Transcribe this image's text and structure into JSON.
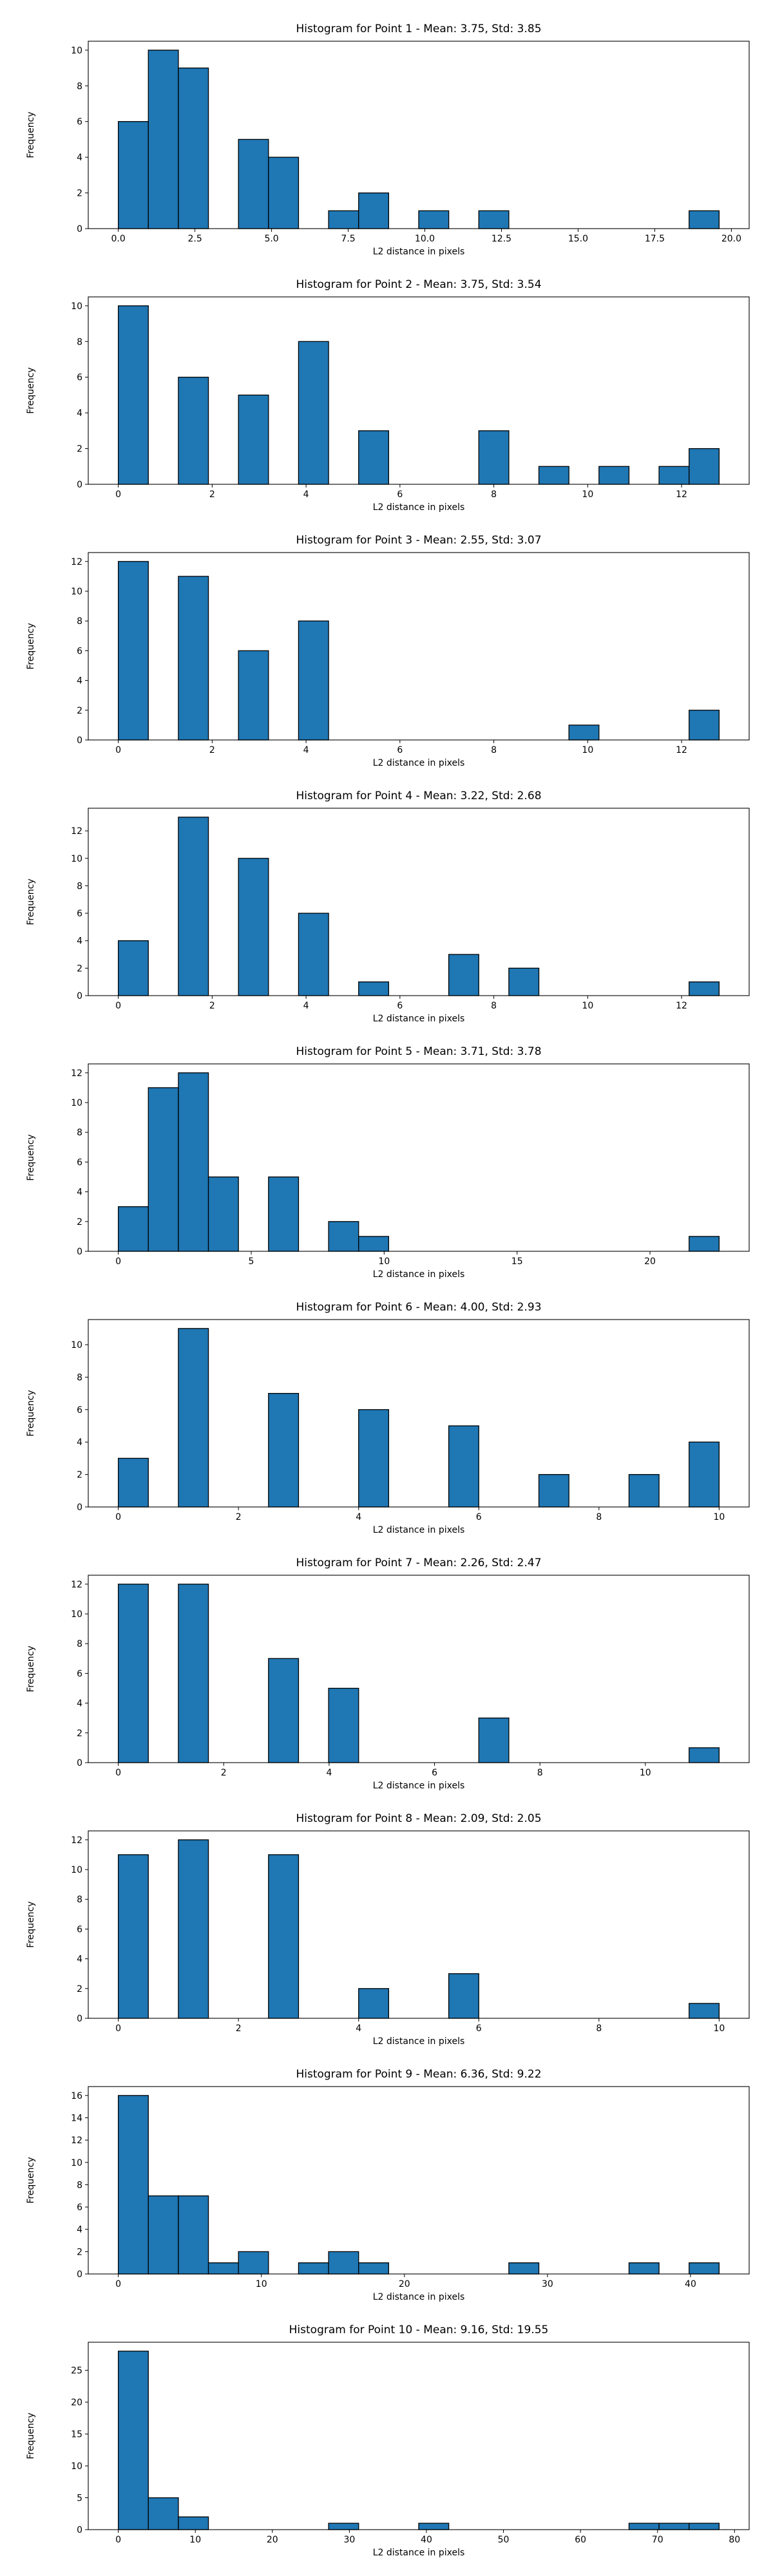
{
  "chart_data": [
    {
      "type": "bar",
      "title": "Histogram for Point 1 - Mean: 3.75, Std: 3.85",
      "xlabel": "L2 distance in pixels",
      "ylabel": "Frequency",
      "bin_start": 0.0,
      "bin_width": 0.98,
      "values": [
        6,
        10,
        9,
        0,
        5,
        4,
        0,
        1,
        2,
        0,
        1,
        0,
        1,
        0,
        0,
        0,
        0,
        0,
        0,
        1
      ],
      "xlim": [
        -0.98,
        20.58
      ],
      "ylim": [
        0,
        10.5
      ],
      "xticks": [
        0.0,
        2.5,
        5.0,
        7.5,
        10.0,
        12.5,
        15.0,
        17.5,
        20.0
      ],
      "xtick_labels": [
        "0.0",
        "2.5",
        "5.0",
        "7.5",
        "10.0",
        "12.5",
        "15.0",
        "17.5",
        "20.0"
      ],
      "yticks": [
        0,
        2,
        4,
        6,
        8,
        10
      ],
      "color": "#1f77b4",
      "edgecolor": "#000000"
    },
    {
      "type": "bar",
      "title": "Histogram for Point 2 - Mean: 3.75, Std: 3.54",
      "xlabel": "L2 distance in pixels",
      "ylabel": "Frequency",
      "bin_start": 0.0,
      "bin_width": 0.64,
      "values": [
        10,
        0,
        6,
        0,
        5,
        0,
        8,
        0,
        3,
        0,
        0,
        0,
        3,
        0,
        1,
        0,
        1,
        0,
        1,
        2
      ],
      "xlim": [
        -0.64,
        13.44
      ],
      "ylim": [
        0,
        10.5
      ],
      "xticks": [
        0,
        2,
        4,
        6,
        8,
        10,
        12
      ],
      "xtick_labels": [
        "0",
        "2",
        "4",
        "6",
        "8",
        "10",
        "12"
      ],
      "yticks": [
        0,
        2,
        4,
        6,
        8,
        10
      ],
      "color": "#1f77b4",
      "edgecolor": "#000000"
    },
    {
      "type": "bar",
      "title": "Histogram for Point 3 - Mean: 2.55, Std: 3.07",
      "xlabel": "L2 distance in pixels",
      "ylabel": "Frequency",
      "bin_start": 0.0,
      "bin_width": 0.64,
      "values": [
        12,
        0,
        11,
        0,
        6,
        0,
        8,
        0,
        0,
        0,
        0,
        0,
        0,
        0,
        0,
        1,
        0,
        0,
        0,
        2
      ],
      "xlim": [
        -0.64,
        13.44
      ],
      "ylim": [
        0,
        12.6
      ],
      "xticks": [
        0,
        2,
        4,
        6,
        8,
        10,
        12
      ],
      "xtick_labels": [
        "0",
        "2",
        "4",
        "6",
        "8",
        "10",
        "12"
      ],
      "yticks": [
        0,
        2,
        4,
        6,
        8,
        10,
        12
      ],
      "color": "#1f77b4",
      "edgecolor": "#000000"
    },
    {
      "type": "bar",
      "title": "Histogram for Point 4 - Mean: 3.22, Std: 2.68",
      "xlabel": "L2 distance in pixels",
      "ylabel": "Frequency",
      "bin_start": 0.0,
      "bin_width": 0.64,
      "values": [
        4,
        0,
        13,
        0,
        10,
        0,
        6,
        0,
        1,
        0,
        0,
        3,
        0,
        2,
        0,
        0,
        0,
        0,
        0,
        1
      ],
      "xlim": [
        -0.64,
        13.44
      ],
      "ylim": [
        0,
        13.65
      ],
      "xticks": [
        0,
        2,
        4,
        6,
        8,
        10,
        12
      ],
      "xtick_labels": [
        "0",
        "2",
        "4",
        "6",
        "8",
        "10",
        "12"
      ],
      "yticks": [
        0,
        2,
        4,
        6,
        8,
        10,
        12
      ],
      "color": "#1f77b4",
      "edgecolor": "#000000"
    },
    {
      "type": "bar",
      "title": "Histogram for Point 5 - Mean: 3.71, Std: 3.78",
      "xlabel": "L2 distance in pixels",
      "ylabel": "Frequency",
      "bin_start": 0.0,
      "bin_width": 1.13,
      "values": [
        3,
        11,
        12,
        5,
        0,
        5,
        0,
        2,
        1,
        0,
        0,
        0,
        0,
        0,
        0,
        0,
        0,
        0,
        0,
        1
      ],
      "xlim": [
        -1.13,
        23.73
      ],
      "ylim": [
        0,
        12.6
      ],
      "xticks": [
        0,
        5,
        10,
        15,
        20
      ],
      "xtick_labels": [
        "0",
        "5",
        "10",
        "15",
        "20"
      ],
      "yticks": [
        0,
        2,
        4,
        6,
        8,
        10,
        12
      ],
      "color": "#1f77b4",
      "edgecolor": "#000000"
    },
    {
      "type": "bar",
      "title": "Histogram for Point 6 - Mean: 4.00, Std: 2.93",
      "xlabel": "L2 distance in pixels",
      "ylabel": "Frequency",
      "bin_start": 0.0,
      "bin_width": 0.5,
      "values": [
        3,
        0,
        11,
        0,
        0,
        7,
        0,
        0,
        6,
        0,
        0,
        5,
        0,
        0,
        2,
        0,
        0,
        2,
        0,
        4
      ],
      "xlim": [
        -0.5,
        10.5
      ],
      "ylim": [
        0,
        11.55
      ],
      "xticks": [
        0,
        2,
        4,
        6,
        8,
        10
      ],
      "xtick_labels": [
        "0",
        "2",
        "4",
        "6",
        "8",
        "10"
      ],
      "yticks": [
        0,
        2,
        4,
        6,
        8,
        10
      ],
      "color": "#1f77b4",
      "edgecolor": "#000000"
    },
    {
      "type": "bar",
      "title": "Histogram for Point 7 - Mean: 2.26, Std: 2.47",
      "xlabel": "L2 distance in pixels",
      "ylabel": "Frequency",
      "bin_start": 0.0,
      "bin_width": 0.57,
      "values": [
        12,
        0,
        12,
        0,
        0,
        7,
        0,
        5,
        0,
        0,
        0,
        0,
        3,
        0,
        0,
        0,
        0,
        0,
        0,
        1
      ],
      "xlim": [
        -0.57,
        11.97
      ],
      "ylim": [
        0,
        12.6
      ],
      "xticks": [
        0,
        2,
        4,
        6,
        8,
        10
      ],
      "xtick_labels": [
        "0",
        "2",
        "4",
        "6",
        "8",
        "10"
      ],
      "yticks": [
        0,
        2,
        4,
        6,
        8,
        10,
        12
      ],
      "color": "#1f77b4",
      "edgecolor": "#000000"
    },
    {
      "type": "bar",
      "title": "Histogram for Point 8 - Mean: 2.09, Std: 2.05",
      "xlabel": "L2 distance in pixels",
      "ylabel": "Frequency",
      "bin_start": 0.0,
      "bin_width": 0.5,
      "values": [
        11,
        0,
        12,
        0,
        0,
        11,
        0,
        0,
        2,
        0,
        0,
        3,
        0,
        0,
        0,
        0,
        0,
        0,
        0,
        1
      ],
      "xlim": [
        -0.5,
        10.5
      ],
      "ylim": [
        0,
        12.6
      ],
      "xticks": [
        0,
        2,
        4,
        6,
        8,
        10
      ],
      "xtick_labels": [
        "0",
        "2",
        "4",
        "6",
        "8",
        "10"
      ],
      "yticks": [
        0,
        2,
        4,
        6,
        8,
        10,
        12
      ],
      "color": "#1f77b4",
      "edgecolor": "#000000"
    },
    {
      "type": "bar",
      "title": "Histogram for Point 9 - Mean: 6.36, Std: 9.22",
      "xlabel": "L2 distance in pixels",
      "ylabel": "Frequency",
      "bin_start": 0.0,
      "bin_width": 2.1,
      "values": [
        16,
        7,
        7,
        1,
        2,
        0,
        1,
        2,
        1,
        0,
        0,
        0,
        0,
        1,
        0,
        0,
        0,
        1,
        0,
        1
      ],
      "xlim": [
        -2.1,
        44.1
      ],
      "ylim": [
        0,
        16.8
      ],
      "xticks": [
        0,
        10,
        20,
        30,
        40
      ],
      "xtick_labels": [
        "0",
        "10",
        "20",
        "30",
        "40"
      ],
      "yticks": [
        0,
        2,
        4,
        6,
        8,
        10,
        12,
        14,
        16
      ],
      "color": "#1f77b4",
      "edgecolor": "#000000"
    },
    {
      "type": "bar",
      "title": "Histogram for Point 10 - Mean: 9.16, Std: 19.55",
      "xlabel": "L2 distance in pixels",
      "ylabel": "Frequency",
      "bin_start": 0.0,
      "bin_width": 3.9,
      "values": [
        28,
        5,
        2,
        0,
        0,
        0,
        0,
        1,
        0,
        0,
        1,
        0,
        0,
        0,
        0,
        0,
        0,
        1,
        1,
        1
      ],
      "xlim": [
        -3.9,
        81.9
      ],
      "ylim": [
        0,
        29.4
      ],
      "xticks": [
        0,
        10,
        20,
        30,
        40,
        50,
        60,
        70,
        80
      ],
      "xtick_labels": [
        "0",
        "10",
        "20",
        "30",
        "40",
        "50",
        "60",
        "70",
        "80"
      ],
      "yticks": [
        0,
        5,
        10,
        15,
        20,
        25
      ],
      "color": "#1f77b4",
      "edgecolor": "#000000"
    }
  ]
}
